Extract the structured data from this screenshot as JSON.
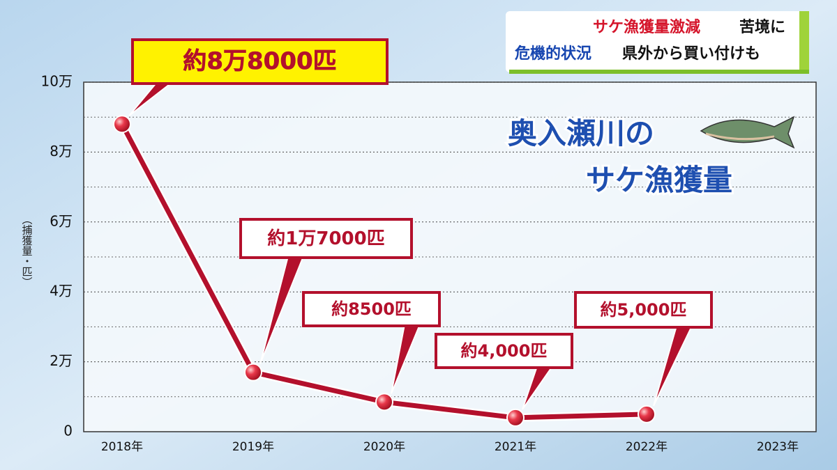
{
  "header": {
    "line1_red": "サケ漁獲量激減",
    "line1_black": "苦境に",
    "line2_blue": "危機的状況",
    "line2_black": "県外から買い付けも"
  },
  "chart_data": {
    "type": "line",
    "title_line1": "奥入瀬川の",
    "title_line2": "サケ漁獲量",
    "y_label": "（捕獲量・匹）",
    "categories": [
      "2018年",
      "2019年",
      "2020年",
      "2021年",
      "2022年",
      "2023年"
    ],
    "series": [
      {
        "color": "#b3102c",
        "values": [
          88000,
          17000,
          8500,
          4000,
          5000,
          null
        ],
        "value_labels": [
          "約8万8000匹",
          "約1万7000匹",
          "約8500匹",
          "約4,000匹",
          "約5,000匹",
          null
        ]
      }
    ],
    "ylim": [
      0,
      100000
    ],
    "yticks": [
      0,
      {
        "value": 20000,
        "label": "2万"
      },
      {
        "value": 40000,
        "label": "4万"
      },
      {
        "value": 60000,
        "label": "6万"
      },
      {
        "value": 80000,
        "label": "8万"
      },
      {
        "value": 100000,
        "label": "10万"
      }
    ],
    "minor_yticks": [
      10000,
      30000,
      50000,
      70000,
      90000
    ],
    "grid": true
  }
}
